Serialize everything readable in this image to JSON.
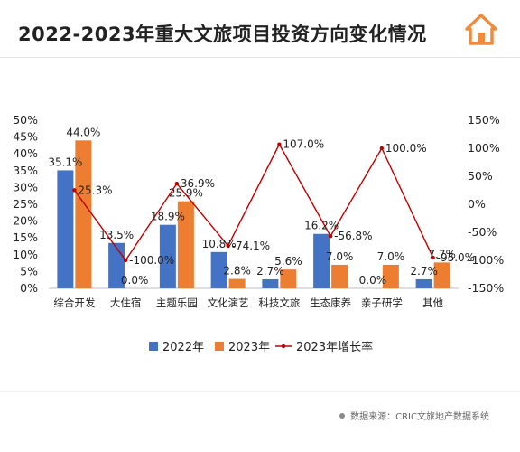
{
  "title": "2022-2023年重大文旅项目投资方向变化情况",
  "source": "数据来源：CRIC文旅地产数据系统",
  "logo_icon": "house-icon",
  "colors": {
    "s2022": "#4472c4",
    "s2023": "#ed7d31",
    "growth": "#c00000",
    "logo": "#f08a3c"
  },
  "chart_data": {
    "type": "bar",
    "categories": [
      "综合开发",
      "大住宿",
      "主题乐园",
      "文化演艺",
      "科技文旅",
      "生态康养",
      "亲子研学",
      "其他"
    ],
    "series": [
      {
        "name": "2022年",
        "values": [
          35.1,
          13.5,
          18.9,
          10.8,
          2.7,
          16.2,
          0.0,
          2.7
        ],
        "labels": [
          "35.1%",
          "13.5%",
          "18.9%",
          "10.8%",
          "2.7%",
          "16.2%",
          "0.0%",
          "2.7%"
        ]
      },
      {
        "name": "2023年",
        "values": [
          44.0,
          0.0,
          25.9,
          2.8,
          5.6,
          7.0,
          7.0,
          7.7
        ],
        "labels": [
          "44.0%",
          "0.0%",
          "25.9%",
          "2.8%",
          "5.6%",
          "7.0%",
          "7.0%",
          "7.7%"
        ]
      }
    ],
    "line_series": {
      "name": "2023年增长率",
      "axis": "right",
      "values": [
        25.3,
        -100.0,
        36.9,
        -74.1,
        107.0,
        -56.8,
        100.0,
        -95.0
      ],
      "labels": [
        "25.3%",
        "-100.0%",
        "36.9%",
        "-74.1%",
        "107.0%",
        "-56.8%",
        "100.0%",
        "-95.0%"
      ]
    },
    "y_left": {
      "min": 0,
      "max": 50,
      "ticks": [
        "0%",
        "5%",
        "10%",
        "15%",
        "20%",
        "25%",
        "30%",
        "35%",
        "40%",
        "45%",
        "50%"
      ]
    },
    "y_right": {
      "min": -150,
      "max": 150,
      "ticks": [
        "-150%",
        "-100%",
        "-50%",
        "0%",
        "50%",
        "100%",
        "150%"
      ]
    },
    "legend": "bottom",
    "grid": false
  }
}
